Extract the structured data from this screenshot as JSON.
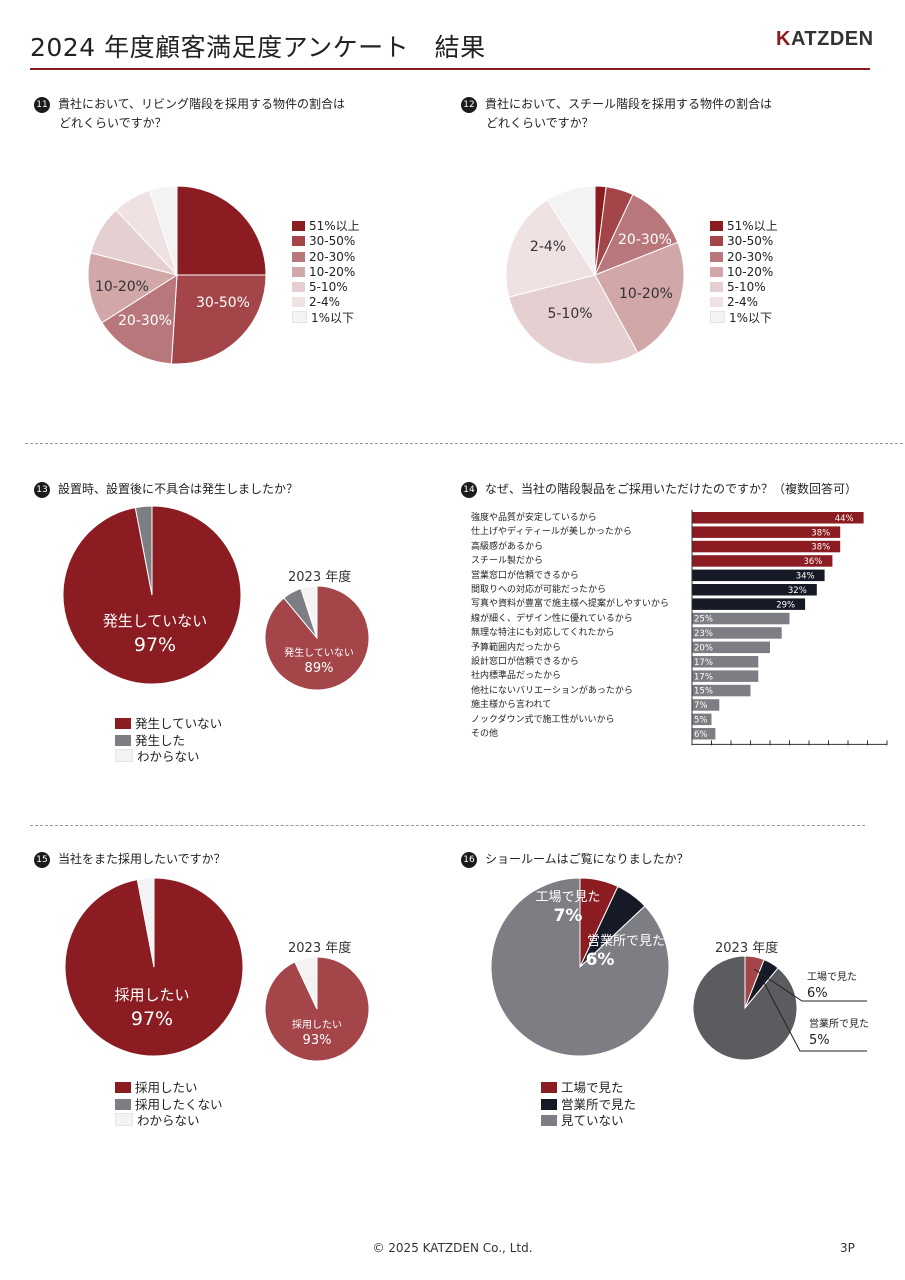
{
  "header": {
    "title": "2024 年度顧客満足度アンケート　結果",
    "logo": "KATZDEN"
  },
  "questions": {
    "q11": {
      "num": "11",
      "line1": "貴社において、リビング階段を採用する物件の割合は",
      "line2": "どれくらいですか？"
    },
    "q12": {
      "num": "12",
      "line1": "貴社において、スチール階段を採用する物件の割合は",
      "line2": "どれくらいですか？"
    },
    "q13": {
      "num": "13",
      "line1": "設置時、設置後に不具合は発生しましたか？"
    },
    "q14": {
      "num": "14",
      "line1": "なぜ、当社の階段製品をご採用いただけたのですか？（複数回答可）"
    },
    "q15": {
      "num": "15",
      "line1": "当社をまた採用したいですか？"
    },
    "q16": {
      "num": "16",
      "line1": "ショールームはご覧になりましたか？"
    }
  },
  "legends": {
    "ratio": [
      "51%以上",
      "30-50%",
      "20-30%",
      "10-20%",
      "5-10%",
      "2-4%",
      "1%以下"
    ],
    "defect": [
      "発生していない",
      "発生した",
      "わからない"
    ],
    "reuse": [
      "採用したい",
      "採用したくない",
      "わからない"
    ],
    "showroom": [
      "工場で見た",
      "営業所で見た",
      "見ていない"
    ]
  },
  "colors": {
    "ratio": [
      "#8a1c22",
      "#a34549",
      "#b8787b",
      "#d1a7a8",
      "#e6cfd0",
      "#f0e2e3",
      "#f3f3f3"
    ],
    "defect": [
      "#8a1c22",
      "#7c7e83",
      "#f3f3f3"
    ],
    "defect_2023": [
      "#a34549",
      "#7c7e83",
      "#f3f3f3"
    ],
    "showroom": [
      "#8a1c22",
      "#161a26",
      "#7c7e83"
    ],
    "showroom_2023": [
      "#a34549",
      "#161a26",
      "#5b5b60"
    ],
    "bar_groups": [
      "#8a1c22",
      "#161a26",
      "#7c7e83"
    ]
  },
  "labels": {
    "q11_pie": [
      "51%以上",
      "30-50%",
      "20-30%",
      "10-20%"
    ],
    "q12_pie": [
      "20-30%",
      "10-20%",
      "5-10%",
      "2-4%"
    ],
    "q13_main_label": "発生していない",
    "q13_main_value": "97%",
    "q13_2023_label": "発生していない",
    "q13_2023_value": "89%",
    "q15_main_label": "採用したい",
    "q15_main_value": "97%",
    "q15_2023_label": "採用したい",
    "q15_2023_value": "93%",
    "year_2023": "2023 年度",
    "q16_factory_label": "工場で見た",
    "q16_factory_value": "7%",
    "q16_office_label": "営業所で見た",
    "q16_office_value": "6%",
    "q16_2023_factory_label": "工場で見た",
    "q16_2023_factory_value": "6%",
    "q16_2023_office_label": "営業所で見た",
    "q16_2023_office_value": "5%"
  },
  "chart_data": [
    {
      "id": "q11",
      "type": "pie",
      "categories": [
        "51%以上",
        "30-50%",
        "20-30%",
        "10-20%",
        "5-10%",
        "2-4%",
        "1%以下"
      ],
      "values": [
        25,
        26,
        15,
        13,
        9,
        7,
        5
      ]
    },
    {
      "id": "q12",
      "type": "pie",
      "categories": [
        "51%以上",
        "30-50%",
        "20-30%",
        "10-20%",
        "5-10%",
        "2-4%",
        "1%以下"
      ],
      "values": [
        2,
        5,
        12,
        23,
        29,
        20,
        9
      ]
    },
    {
      "id": "q13",
      "type": "pie",
      "categories": [
        "発生していない",
        "発生した",
        "わからない"
      ],
      "values": [
        97,
        3,
        0
      ]
    },
    {
      "id": "q13_2023",
      "type": "pie",
      "categories": [
        "発生していない",
        "発生した",
        "わからない"
      ],
      "values": [
        89,
        6,
        5
      ]
    },
    {
      "id": "q14",
      "type": "bar",
      "orientation": "horizontal",
      "categories": [
        "強度や品質が安定しているから",
        "仕上げやディティールが美しかったから",
        "高級感があるから",
        "スチール製だから",
        "営業窓口が信頼できるから",
        "間取りへの対応が可能だったから",
        "写真や資料が豊富で施主様へ提案がしやすいから",
        "線が細く、デザイン性に優れているから",
        "無理な特注にも対応してくれたから",
        "予算範囲内だったから",
        "設計窓口が信頼できるから",
        "社内標準品だったから",
        "他社にないバリエーションがあったから",
        "施主様から言われて",
        "ノックダウン式で施工性がいいから",
        "その他"
      ],
      "values": [
        44,
        38,
        38,
        36,
        34,
        32,
        29,
        25,
        23,
        20,
        17,
        17,
        15,
        7,
        5,
        6
      ],
      "value_labels": [
        "44%",
        "38%",
        "38%",
        "36%",
        "34%",
        "32%",
        "29%",
        "25%",
        "23%",
        "20%",
        "17%",
        "17%",
        "15%",
        "7%",
        "5%",
        "6%"
      ],
      "group": [
        0,
        0,
        0,
        0,
        1,
        1,
        1,
        2,
        2,
        2,
        2,
        2,
        2,
        2,
        2,
        2
      ],
      "xlim": [
        0,
        50
      ]
    },
    {
      "id": "q15",
      "type": "pie",
      "categories": [
        "採用したい",
        "採用したくない",
        "わからない"
      ],
      "values": [
        97,
        0,
        3
      ]
    },
    {
      "id": "q15_2023",
      "type": "pie",
      "categories": [
        "採用したい",
        "採用したくない",
        "わからない"
      ],
      "values": [
        93,
        0,
        7
      ]
    },
    {
      "id": "q16",
      "type": "pie",
      "categories": [
        "工場で見た",
        "営業所で見た",
        "見ていない"
      ],
      "values": [
        7,
        6,
        87
      ]
    },
    {
      "id": "q16_2023",
      "type": "pie",
      "categories": [
        "工場で見た",
        "営業所で見た",
        "見ていない"
      ],
      "values": [
        6,
        5,
        89
      ]
    }
  ],
  "footer": {
    "copyright": "© 2025 KATZDEN Co., Ltd.",
    "page": "3P"
  }
}
